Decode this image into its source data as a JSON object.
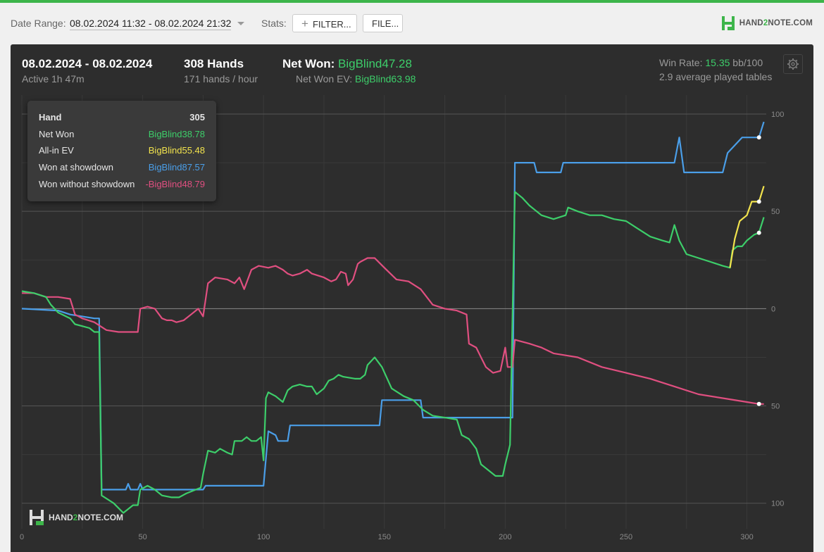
{
  "toolbar": {
    "date_range_label": "Date Range:",
    "date_range_value": "08.02.2024 11:32 - 08.02.2024 21:32",
    "stats_label": "Stats:",
    "filter_button": "FILTER...",
    "file_button": "FILE...",
    "logo_text_a": "HAND",
    "logo_text_2": "2",
    "logo_text_b": "NOTE.COM"
  },
  "summary": {
    "dates": "08.02.2024 - 08.02.2024",
    "active": "Active 1h 47m",
    "hands": "308 Hands",
    "hands_rate": "171 hands / hour",
    "net_won_label": "Net Won: ",
    "net_won_value": "BigBlind47.28",
    "net_won_ev_label": "Net Won  EV: ",
    "net_won_ev_value": "BigBlind63.98",
    "win_rate_label": "Win Rate: ",
    "win_rate_value": "15.35",
    "win_rate_unit": " bb/100",
    "tables": "2.9 average played tables"
  },
  "tooltip": {
    "hand_label": "Hand",
    "hand_value": "305",
    "rows": [
      {
        "label": "Net Won",
        "value": "BigBlind38.78",
        "color": "#3dce6a"
      },
      {
        "label": "All-in EV",
        "value": "BigBlind55.48",
        "color": "#f2e34d"
      },
      {
        "label": "Won at showdown",
        "value": "BigBlind87.57",
        "color": "#4a9ee8"
      },
      {
        "label": "Won without showdown",
        "value": "-BigBlind48.79",
        "color": "#e04f80"
      }
    ]
  },
  "watermark": {
    "a": "HAND",
    "two": "2",
    "b": "NOTE.COM"
  },
  "chart_data": {
    "type": "line",
    "xlim": [
      0,
      308
    ],
    "ylim": [
      -120,
      100
    ],
    "x_ticks": [
      0,
      50,
      100,
      150,
      200,
      250,
      300
    ],
    "y_ticks": [
      {
        "value": 100,
        "label": "100"
      },
      {
        "value": 50,
        "label": "50"
      },
      {
        "value": 0,
        "label": "0"
      },
      {
        "value": -50,
        "label": "50"
      },
      {
        "value": -100,
        "label": "100"
      }
    ],
    "colors": {
      "net_won": "#3dce6a",
      "all_in_ev": "#f2e34d",
      "showdown": "#4a9ee8",
      "non_showdown": "#e04f80"
    },
    "series": [
      {
        "key": "showdown",
        "color": "#4a9ee8",
        "points": [
          [
            0,
            0
          ],
          [
            15,
            -1
          ],
          [
            20,
            -3
          ],
          [
            25,
            -4
          ],
          [
            30,
            -5
          ],
          [
            32,
            -5
          ],
          [
            33,
            -93
          ],
          [
            43,
            -93
          ],
          [
            44,
            -90
          ],
          [
            45,
            -93
          ],
          [
            48,
            -93
          ],
          [
            49,
            -90
          ],
          [
            50,
            -93
          ],
          [
            75,
            -93
          ],
          [
            76,
            -91
          ],
          [
            100,
            -91
          ],
          [
            101,
            -77
          ],
          [
            102,
            -63
          ],
          [
            105,
            -65
          ],
          [
            106,
            -68
          ],
          [
            110,
            -68
          ],
          [
            111,
            -60
          ],
          [
            148,
            -60
          ],
          [
            149,
            -47
          ],
          [
            165,
            -47
          ],
          [
            166,
            -56
          ],
          [
            203,
            -56
          ],
          [
            204,
            75
          ],
          [
            212,
            75
          ],
          [
            213,
            70
          ],
          [
            223,
            70
          ],
          [
            224,
            75
          ],
          [
            270,
            75
          ],
          [
            272,
            88
          ],
          [
            274,
            70
          ],
          [
            290,
            70
          ],
          [
            292,
            80
          ],
          [
            298,
            88
          ],
          [
            305,
            88
          ],
          [
            307,
            96
          ]
        ]
      },
      {
        "key": "non_showdown",
        "color": "#e04f80",
        "points": [
          [
            0,
            8
          ],
          [
            5,
            8
          ],
          [
            10,
            6
          ],
          [
            15,
            6
          ],
          [
            20,
            5
          ],
          [
            22,
            -3
          ],
          [
            25,
            -5
          ],
          [
            30,
            -7
          ],
          [
            35,
            -11
          ],
          [
            40,
            -12
          ],
          [
            45,
            -12
          ],
          [
            48,
            -12
          ],
          [
            49,
            0
          ],
          [
            52,
            1
          ],
          [
            55,
            0
          ],
          [
            58,
            -5
          ],
          [
            60,
            -6
          ],
          [
            62,
            -6
          ],
          [
            64,
            -7
          ],
          [
            67,
            -6
          ],
          [
            70,
            -3
          ],
          [
            73,
            0
          ],
          [
            75,
            -4
          ],
          [
            77,
            13
          ],
          [
            80,
            16
          ],
          [
            85,
            15
          ],
          [
            88,
            13
          ],
          [
            90,
            16
          ],
          [
            92,
            10
          ],
          [
            95,
            20
          ],
          [
            98,
            22
          ],
          [
            102,
            21
          ],
          [
            105,
            22
          ],
          [
            108,
            20
          ],
          [
            110,
            18
          ],
          [
            112,
            17
          ],
          [
            115,
            18
          ],
          [
            118,
            20
          ],
          [
            120,
            18
          ],
          [
            125,
            16
          ],
          [
            128,
            14
          ],
          [
            130,
            15
          ],
          [
            132,
            19
          ],
          [
            134,
            18
          ],
          [
            135,
            12
          ],
          [
            137,
            15
          ],
          [
            139,
            23
          ],
          [
            140,
            24
          ],
          [
            143,
            26
          ],
          [
            146,
            26
          ],
          [
            150,
            21
          ],
          [
            155,
            15
          ],
          [
            160,
            14
          ],
          [
            165,
            10
          ],
          [
            170,
            2
          ],
          [
            175,
            0
          ],
          [
            180,
            -1
          ],
          [
            184,
            -3
          ],
          [
            185,
            -18
          ],
          [
            188,
            -20
          ],
          [
            190,
            -25
          ],
          [
            192,
            -30
          ],
          [
            195,
            -33
          ],
          [
            198,
            -32
          ],
          [
            200,
            -20
          ],
          [
            201,
            -30
          ],
          [
            203,
            -30
          ],
          [
            204,
            -16
          ],
          [
            210,
            -18
          ],
          [
            215,
            -20
          ],
          [
            220,
            -23
          ],
          [
            225,
            -24
          ],
          [
            230,
            -25
          ],
          [
            240,
            -30
          ],
          [
            250,
            -33
          ],
          [
            260,
            -36
          ],
          [
            270,
            -40
          ],
          [
            280,
            -44
          ],
          [
            290,
            -46
          ],
          [
            300,
            -48
          ],
          [
            305,
            -49
          ],
          [
            307,
            -49
          ]
        ]
      },
      {
        "key": "net_won",
        "color": "#3dce6a",
        "points": [
          [
            0,
            9
          ],
          [
            5,
            8
          ],
          [
            10,
            6
          ],
          [
            12,
            2
          ],
          [
            15,
            -2
          ],
          [
            20,
            -5
          ],
          [
            22,
            -8
          ],
          [
            25,
            -9
          ],
          [
            28,
            -10
          ],
          [
            30,
            -12
          ],
          [
            32,
            -12
          ],
          [
            33,
            -96
          ],
          [
            38,
            -100
          ],
          [
            42,
            -105
          ],
          [
            46,
            -101
          ],
          [
            48,
            -101
          ],
          [
            49,
            -93
          ],
          [
            52,
            -91
          ],
          [
            55,
            -93
          ],
          [
            58,
            -96
          ],
          [
            62,
            -97
          ],
          [
            65,
            -97
          ],
          [
            68,
            -95
          ],
          [
            72,
            -93
          ],
          [
            74,
            -92
          ],
          [
            75,
            -85
          ],
          [
            77,
            -73
          ],
          [
            80,
            -74
          ],
          [
            82,
            -72
          ],
          [
            85,
            -74
          ],
          [
            87,
            -75
          ],
          [
            88,
            -68
          ],
          [
            91,
            -68
          ],
          [
            93,
            -66
          ],
          [
            95,
            -68
          ],
          [
            97,
            -68
          ],
          [
            99,
            -66
          ],
          [
            100,
            -78
          ],
          [
            101,
            -46
          ],
          [
            102,
            -43
          ],
          [
            105,
            -45
          ],
          [
            108,
            -48
          ],
          [
            110,
            -42
          ],
          [
            112,
            -40
          ],
          [
            115,
            -39
          ],
          [
            118,
            -40
          ],
          [
            120,
            -40
          ],
          [
            122,
            -44
          ],
          [
            125,
            -41
          ],
          [
            127,
            -37
          ],
          [
            129,
            -36
          ],
          [
            131,
            -34
          ],
          [
            133,
            -35
          ],
          [
            138,
            -36
          ],
          [
            140,
            -36
          ],
          [
            142,
            -34
          ],
          [
            143,
            -29
          ],
          [
            146,
            -25
          ],
          [
            149,
            -30
          ],
          [
            153,
            -41
          ],
          [
            158,
            -45
          ],
          [
            162,
            -47
          ],
          [
            166,
            -52
          ],
          [
            170,
            -55
          ],
          [
            175,
            -56
          ],
          [
            180,
            -57
          ],
          [
            182,
            -65
          ],
          [
            185,
            -67
          ],
          [
            188,
            -72
          ],
          [
            190,
            -80
          ],
          [
            192,
            -82
          ],
          [
            196,
            -86
          ],
          [
            199,
            -86
          ],
          [
            200,
            -80
          ],
          [
            202,
            -70
          ],
          [
            204,
            60
          ],
          [
            207,
            57
          ],
          [
            210,
            53
          ],
          [
            215,
            48
          ],
          [
            220,
            46
          ],
          [
            225,
            48
          ],
          [
            226,
            52
          ],
          [
            230,
            50
          ],
          [
            235,
            48
          ],
          [
            240,
            48
          ],
          [
            245,
            46
          ],
          [
            250,
            45
          ],
          [
            255,
            41
          ],
          [
            260,
            37
          ],
          [
            265,
            35
          ],
          [
            268,
            34
          ],
          [
            270,
            43
          ],
          [
            272,
            35
          ],
          [
            275,
            28
          ],
          [
            280,
            26
          ],
          [
            285,
            24
          ],
          [
            290,
            22
          ],
          [
            293,
            21
          ],
          [
            294,
            30
          ],
          [
            296,
            32
          ],
          [
            298,
            32
          ],
          [
            300,
            35
          ],
          [
            303,
            38
          ],
          [
            305,
            39
          ],
          [
            307,
            47
          ]
        ]
      },
      {
        "key": "all_in_ev",
        "color": "#f2e34d",
        "points": [
          [
            293,
            21
          ],
          [
            295,
            36
          ],
          [
            297,
            45
          ],
          [
            300,
            48
          ],
          [
            302,
            55
          ],
          [
            305,
            55
          ],
          [
            307,
            63
          ]
        ]
      }
    ],
    "end_markers": [
      {
        "series": "showdown",
        "x": 305,
        "y": 88
      },
      {
        "series": "all_in_ev",
        "x": 305,
        "y": 55
      },
      {
        "series": "net_won",
        "x": 305,
        "y": 39
      },
      {
        "series": "non_showdown",
        "x": 305,
        "y": -49
      }
    ]
  }
}
